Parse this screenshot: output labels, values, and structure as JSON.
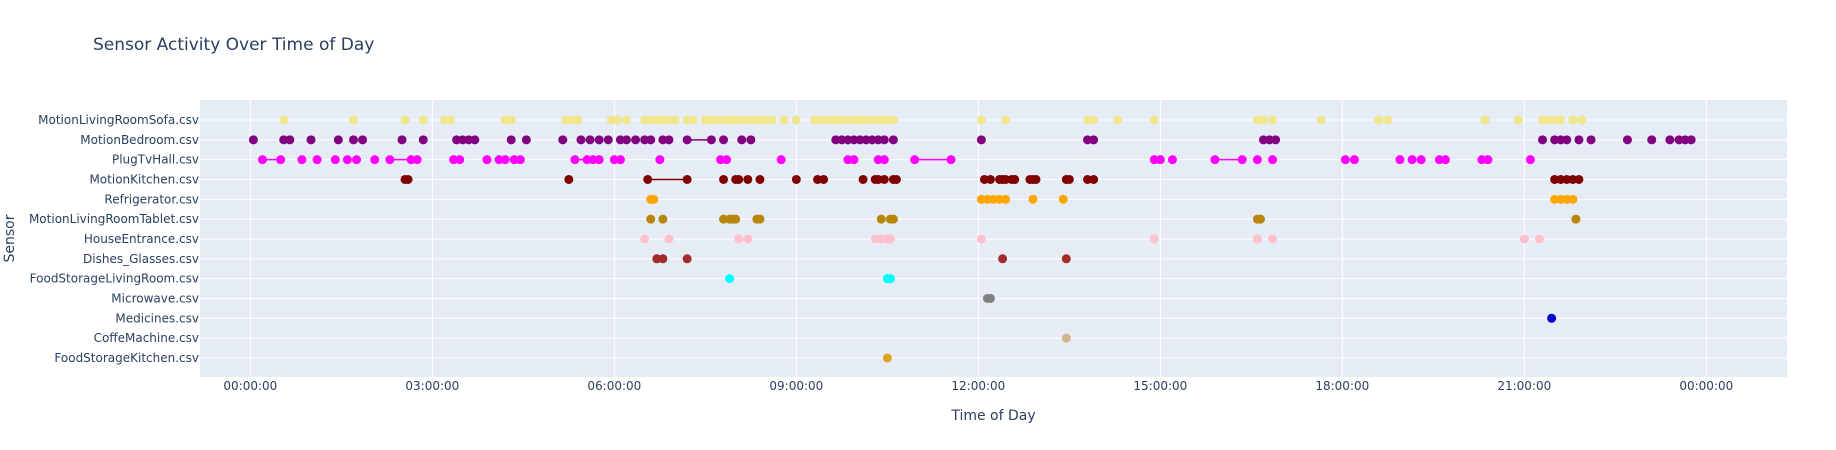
{
  "chart_data": {
    "type": "scatter",
    "title": "Sensor Activity Over Time of Day",
    "xlabel": "Time of Day",
    "ylabel": "Sensor",
    "x_unit": "hours",
    "xlim": [
      -0.83,
      25.33
    ],
    "x_ticks": [
      {
        "value": 0,
        "label": "00:00:00"
      },
      {
        "value": 3,
        "label": "03:00:00"
      },
      {
        "value": 6,
        "label": "06:00:00"
      },
      {
        "value": 9,
        "label": "09:00:00"
      },
      {
        "value": 12,
        "label": "12:00:00"
      },
      {
        "value": 15,
        "label": "15:00:00"
      },
      {
        "value": 18,
        "label": "18:00:00"
      },
      {
        "value": 21,
        "label": "21:00:00"
      },
      {
        "value": 24,
        "label": "00:00:00"
      }
    ],
    "grid": true,
    "legend": "none",
    "background": "#e5ecf6",
    "categories": [
      "MotionLivingRoomSofa.csv",
      "MotionBedroom.csv",
      "PlugTvHall.csv",
      "MotionKitchen.csv",
      "Refrigerator.csv",
      "MotionLivingRoomTablet.csv",
      "HouseEntrance.csv",
      "Dishes_Glasses.csv",
      "FoodStorageLivingRoom.csv",
      "Microwave.csv",
      "Medicines.csv",
      "CoffeMachine.csv",
      "FoodStorageKitchen.csv"
    ],
    "series": [
      {
        "category": "MotionLivingRoomSofa.csv",
        "color": "#f0e68c",
        "x": [
          0.55,
          1.7,
          2.55,
          2.85,
          3.2,
          3.3,
          4.2,
          4.3,
          5.2,
          5.3,
          5.4,
          5.95,
          6.05,
          6.2,
          6.5,
          6.6,
          6.7,
          6.8,
          6.9,
          7.0,
          7.2,
          7.3,
          7.5,
          7.6,
          7.7,
          7.8,
          7.9,
          8.0,
          8.1,
          8.2,
          8.3,
          8.4,
          8.5,
          8.6,
          8.8,
          9.0,
          9.3,
          9.4,
          9.5,
          9.6,
          9.7,
          9.8,
          9.9,
          10.0,
          10.1,
          10.2,
          10.3,
          10.4,
          10.5,
          10.6,
          12.05,
          12.45,
          13.8,
          13.9,
          14.3,
          14.9,
          16.6,
          16.7,
          16.85,
          17.65,
          18.6,
          18.75,
          20.35,
          20.9,
          21.3,
          21.4,
          21.5,
          21.6,
          21.8,
          21.95
        ],
        "segments": [
          [
            6.5,
            7.0
          ],
          [
            7.6,
            8.6
          ],
          [
            9.6,
            10.6
          ],
          [
            21.3,
            21.6
          ]
        ]
      },
      {
        "category": "MotionBedroom.csv",
        "color": "#800080",
        "x": [
          0.05,
          0.55,
          0.65,
          1.0,
          1.45,
          1.7,
          1.85,
          2.5,
          2.85,
          3.4,
          3.5,
          3.6,
          3.7,
          4.3,
          4.55,
          5.15,
          5.45,
          5.6,
          5.75,
          5.9,
          6.1,
          6.2,
          6.35,
          6.5,
          6.6,
          6.8,
          6.9,
          7.2,
          7.6,
          7.8,
          8.1,
          8.25,
          9.65,
          9.75,
          9.85,
          9.95,
          10.05,
          10.15,
          10.25,
          10.35,
          10.45,
          10.6,
          12.05,
          13.8,
          13.9,
          16.7,
          16.8,
          16.9,
          21.3,
          21.5,
          21.6,
          21.7,
          21.9,
          22.1,
          22.7,
          23.1,
          23.4,
          23.55,
          23.65,
          23.75
        ],
        "segments": [
          [
            7.2,
            7.6
          ]
        ]
      },
      {
        "category": "PlugTvHall.csv",
        "color": "#ff00ff",
        "x": [
          0.2,
          0.5,
          0.85,
          1.1,
          1.4,
          1.6,
          1.75,
          2.05,
          2.3,
          2.65,
          2.75,
          3.35,
          3.45,
          3.9,
          4.1,
          4.2,
          4.35,
          4.45,
          5.35,
          5.55,
          5.65,
          5.75,
          6.0,
          6.1,
          6.75,
          7.75,
          7.85,
          8.75,
          9.85,
          9.95,
          10.35,
          10.45,
          10.95,
          11.55,
          14.9,
          15.0,
          15.2,
          15.9,
          16.35,
          16.6,
          16.85,
          18.05,
          18.2,
          18.95,
          19.15,
          19.3,
          19.6,
          19.7,
          20.3,
          20.4,
          21.1
        ],
        "segments": [
          [
            0.2,
            0.5
          ],
          [
            2.3,
            2.65
          ],
          [
            5.35,
            5.55
          ],
          [
            10.95,
            11.55
          ],
          [
            15.9,
            16.35
          ]
        ]
      },
      {
        "category": "MotionKitchen.csv",
        "color": "#800000",
        "x": [
          2.55,
          2.6,
          5.25,
          6.55,
          7.2,
          7.8,
          8.0,
          8.05,
          8.2,
          8.4,
          9.0,
          9.35,
          9.45,
          10.1,
          10.3,
          10.35,
          10.45,
          10.6,
          10.65,
          12.1,
          12.2,
          12.35,
          12.4,
          12.45,
          12.55,
          12.6,
          12.85,
          12.9,
          12.95,
          13.45,
          13.5,
          13.8,
          13.9,
          21.5,
          21.6,
          21.7,
          21.8,
          21.9
        ],
        "segments": [
          [
            6.55,
            7.2
          ]
        ]
      },
      {
        "category": "Refrigerator.csv",
        "color": "#ffa500",
        "x": [
          6.6,
          6.65,
          12.05,
          12.15,
          12.25,
          12.35,
          12.45,
          12.9,
          13.4,
          21.5,
          21.6,
          21.7,
          21.8
        ],
        "segments": []
      },
      {
        "category": "MotionLivingRoomTablet.csv",
        "color": "#b8860b",
        "x": [
          6.6,
          6.8,
          7.8,
          7.9,
          7.95,
          8.0,
          8.35,
          8.4,
          10.4,
          10.55,
          10.6,
          16.6,
          16.65,
          21.85
        ],
        "segments": []
      },
      {
        "category": "HouseEntrance.csv",
        "color": "#ffc0cb",
        "x": [
          6.5,
          6.9,
          8.05,
          8.2,
          10.3,
          10.4,
          10.5,
          10.55,
          12.05,
          14.9,
          16.6,
          16.85,
          21.0,
          21.25
        ],
        "segments": []
      },
      {
        "category": "Dishes_Glasses.csv",
        "color": "#a52a2a",
        "x": [
          6.7,
          6.8,
          7.2,
          12.4,
          13.45
        ],
        "segments": []
      },
      {
        "category": "FoodStorageLivingRoom.csv",
        "color": "#00ffff",
        "x": [
          7.9,
          10.5,
          10.55
        ],
        "segments": []
      },
      {
        "category": "Microwave.csv",
        "color": "#808080",
        "x": [
          12.15,
          12.2
        ],
        "segments": []
      },
      {
        "category": "Medicines.csv",
        "color": "#0000cd",
        "x": [
          21.45
        ],
        "segments": []
      },
      {
        "category": "CoffeMachine.csv",
        "color": "#d2b48c",
        "x": [
          13.45
        ],
        "segments": []
      },
      {
        "category": "FoodStorageKitchen.csv",
        "color": "#daa520",
        "x": [
          10.5
        ],
        "segments": []
      }
    ]
  }
}
